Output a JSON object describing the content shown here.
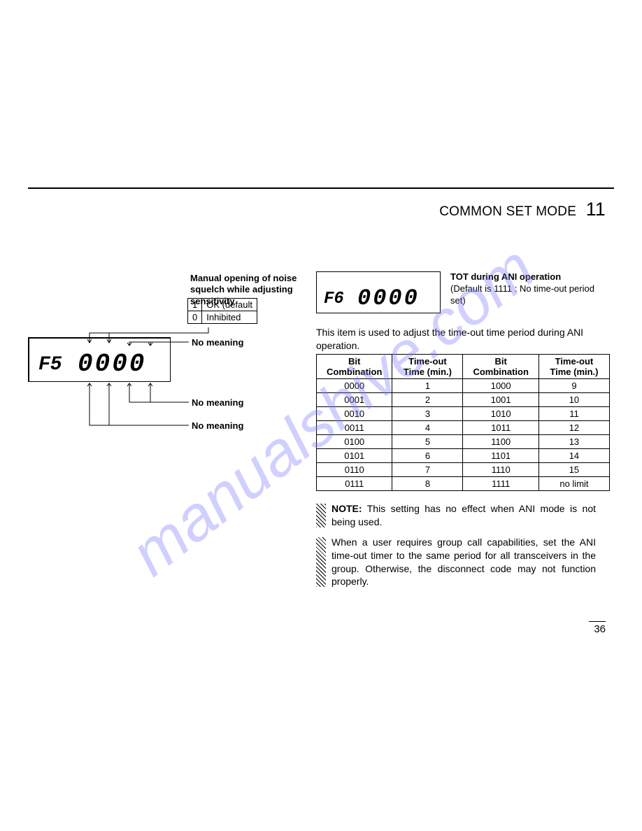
{
  "header": {
    "title": "COMMON SET MODE",
    "number": "11"
  },
  "watermark": "manualshive.com",
  "left": {
    "callout_title": "Manual opening of noise squelch while adjusting sensitivity",
    "options": [
      {
        "code": "1",
        "label": "OK (default"
      },
      {
        "code": "0",
        "label": "Inhibited"
      }
    ],
    "lcd": {
      "label": "F5",
      "digits": "0000"
    },
    "ann1": "No meaning",
    "ann2": "No meaning",
    "ann3": "No meaning"
  },
  "right": {
    "lcd": {
      "label": "F6",
      "digits": "0000"
    },
    "tot_heading": "TOT during ANI operation",
    "tot_sub": "(Default is 1111 : No time-out period set)",
    "desc": "This item is used to adjust the time-out time period during ANI operation.",
    "table": {
      "headers": [
        "Bit Combination",
        "Time-out Time (min.)",
        "Bit Combination",
        "Time-out Time (min.)"
      ],
      "rows": [
        [
          "0000",
          "1",
          "1000",
          "9"
        ],
        [
          "0001",
          "2",
          "1001",
          "10"
        ],
        [
          "0010",
          "3",
          "1010",
          "11"
        ],
        [
          "0011",
          "4",
          "1011",
          "12"
        ],
        [
          "0100",
          "5",
          "1100",
          "13"
        ],
        [
          "0101",
          "6",
          "1101",
          "14"
        ],
        [
          "0110",
          "7",
          "1110",
          "15"
        ],
        [
          "0111",
          "8",
          "1111",
          "no limit"
        ]
      ]
    },
    "note_label": "NOTE:",
    "note1": " This setting has no effect when ANI mode is not being used.",
    "note2": "When a user requires group call capabilities, set the ANI time-out timer to the same period for all transceivers in the group. Otherwise, the disconnect code may not function properly."
  },
  "page_number": "36"
}
